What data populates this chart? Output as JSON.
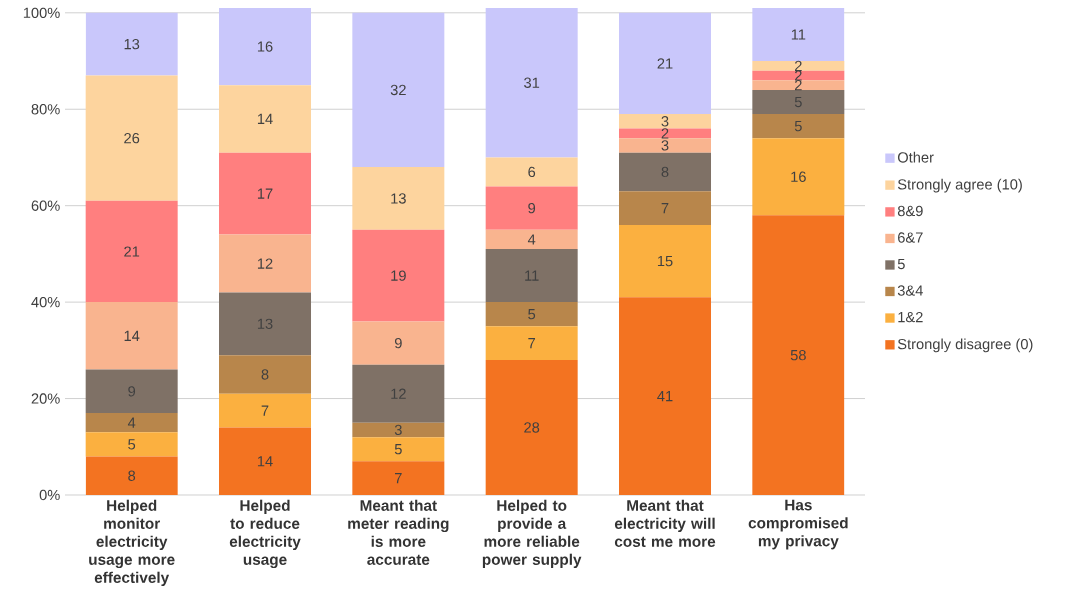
{
  "chart_data": {
    "type": "bar",
    "stacked": true,
    "categories": [
      "Helped monitor electricity usage more effectively",
      "Helped to reduce electricity usage",
      "Meant that meter reading is more accurate",
      "Helped to provide a more reliable power supply",
      "Meant that electricity will cost me more",
      "Has compromised my privacy"
    ],
    "series": [
      {
        "name": "Strongly disagree (0)",
        "color": "#f37321",
        "values": [
          8,
          14,
          7,
          28,
          41,
          58
        ]
      },
      {
        "name": "1&2",
        "color": "#fbb040",
        "values": [
          5,
          7,
          5,
          7,
          15,
          16
        ]
      },
      {
        "name": "3&4",
        "color": "#b8864b",
        "values": [
          4,
          8,
          3,
          5,
          7,
          5
        ]
      },
      {
        "name": "5",
        "color": "#7f7166",
        "values": [
          9,
          13,
          12,
          11,
          8,
          5
        ]
      },
      {
        "name": "6&7",
        "color": "#f9b48f",
        "values": [
          14,
          12,
          9,
          4,
          3,
          2
        ]
      },
      {
        "name": "8&9",
        "color": "#ff7f7f",
        "values": [
          21,
          17,
          19,
          9,
          2,
          2
        ]
      },
      {
        "name": "Strongly agree (10)",
        "color": "#fdd49e",
        "values": [
          26,
          14,
          13,
          6,
          3,
          2
        ]
      },
      {
        "name": "Other",
        "color": "#c9c7fb",
        "values": [
          13,
          16,
          32,
          31,
          21,
          11
        ]
      }
    ],
    "ylim": [
      0,
      101
    ],
    "yticks": [
      {
        "value": 0,
        "label": "0%"
      },
      {
        "value": 20,
        "label": "20%"
      },
      {
        "value": 40,
        "label": "40%"
      },
      {
        "value": 60,
        "label": "60%"
      },
      {
        "value": 80,
        "label": "80%"
      },
      {
        "value": 100,
        "label": "100%"
      }
    ],
    "grid": "y",
    "legend": "right",
    "data_labels": true
  }
}
